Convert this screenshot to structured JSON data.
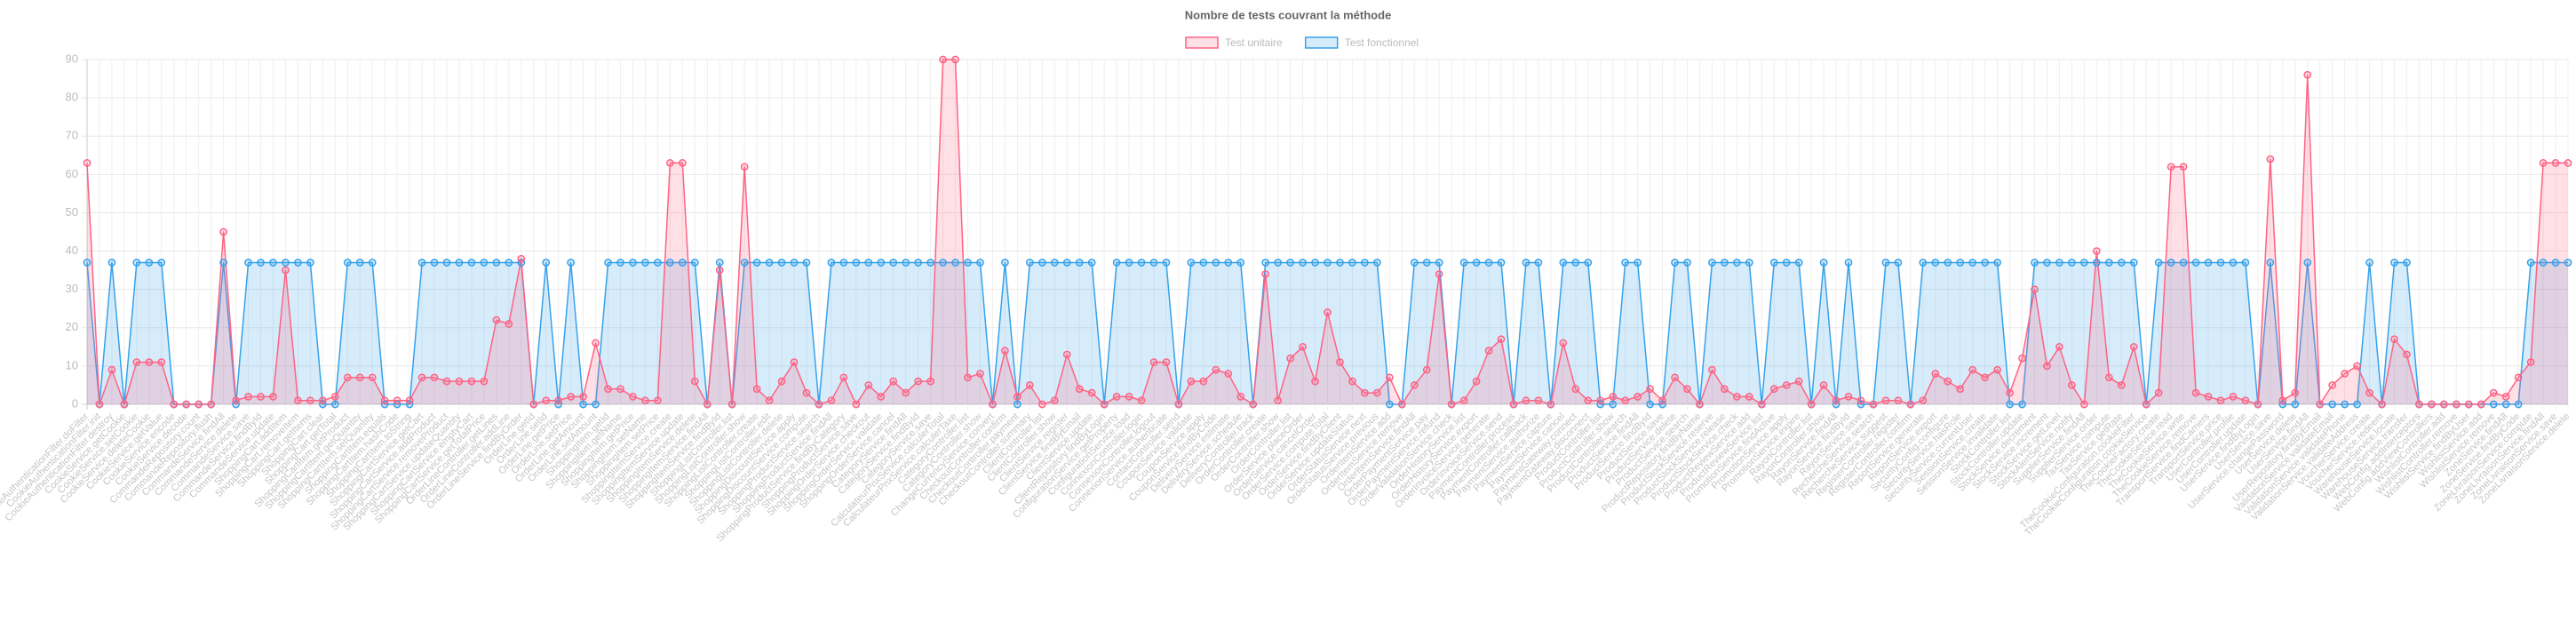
{
  "chart_data": {
    "type": "line",
    "title": "Nombre de tests couvrant la méthode",
    "legend": "top",
    "grid": true,
    "ylim": [
      0,
      90
    ],
    "yticks": [
      0,
      10,
      20,
      30,
      40,
      50,
      60,
      70,
      80,
      90
    ],
    "categories": [
      "CookieAuthenticationFilter.doFilter",
      "CookieAuthenticationFilter.init",
      "CookieAuthenticationFilter.destroy",
      "CookieService.getCookie",
      "CookieService.setCookie",
      "CookieService.deleteCookie",
      "CookieService.getValue",
      "CookieService.encode",
      "CookieService.decode",
      "CommandeRepository.count",
      "CommandeRepository.flush",
      "CommandeService.findAll",
      "CommandeService.delete",
      "CommandeService.save",
      "CommandeService.findById",
      "CommandeService.update",
      "ShoppingCart.addItem",
      "ShoppingCart.removeItem",
      "ShoppingCart.getItems",
      "ShoppingCart.clear",
      "ShoppingCart.getTotal",
      "ShoppingCartItem.getProduct",
      "ShoppingCartItem.getQuantity",
      "ShoppingCartItem.setQuantity",
      "ShoppingCartItem.equals",
      "ShoppingCartItem.hashCode",
      "ShoppingCartItem.toString",
      "ShoppingCartService.getCart",
      "ShoppingCartService.addProduct",
      "ShoppingCartService.removeProduct",
      "ShoppingCartService.updateQuantity",
      "ShoppingCartService.emptyCart",
      "ShoppingCartService.getTotalPrice",
      "OrderLineController.getLines",
      "OrderLineController.addLine",
      "OrderLineService.findByOrder",
      "OrderLine.getId",
      "OrderLine.setId",
      "OrderLine.getPrice",
      "OrderLine.setPrice",
      "OrderLine.getAmount",
      "OrderLine.setAmount",
      "ShoppingItem.getId",
      "ShoppingItem.getName",
      "ShoppingItem.getPrice",
      "ShoppingItem.setName",
      "ShoppingItem.setPrice",
      "ShoppingItemService.create",
      "ShoppingItemService.update",
      "ShoppingItemService.delete",
      "ShoppingItemService.findAll",
      "ShoppingItemService.findById",
      "ShoppingListController.list",
      "ShoppingListController.show",
      "ShoppingListController.create",
      "ShoppingListController.edit",
      "ShoppingListController.delete",
      "ShoppingDiscountService.apply",
      "ShoppingDiscountService.compute",
      "ShoppingProductService.search",
      "ShoppingProductService.findAll",
      "ShoppingProductService.findByCategory",
      "ShoppingProductService.save",
      "ShoppingOrderService.checkout",
      "ShoppingOrderService.validate",
      "ShoppingOrderService.cancel",
      "CategoryService.findAll",
      "CategoryService.findById",
      "CategoryService.save",
      "CalculateurPrixService.calculerTotal",
      "CalculateurPrixService.calculerTaxe",
      "CategoryController.list",
      "CategoryController.show",
      "ChangeCurrencyService.convert",
      "CheckoutController.confirm",
      "CheckoutController.payment",
      "CheckoutController.summary",
      "ClientController.list",
      "ClientController.show",
      "ClientService.register",
      "ClientService.findByEmail",
      "ClientService.update",
      "ClientRepository.findByLogin",
      "ConfigurationService.getProperty",
      "ConfigurationService.load",
      "ConnexionController.login",
      "ConnexionController.logout",
      "ConnexionService.authenticate",
      "ContactController.send",
      "CouponService.validate",
      "CouponService.apply",
      "CouponService.findByCode",
      "DeliveryService.estimate",
      "DeliveryService.schedule",
      "DeliveryController.track",
      "OrderController.create",
      "OrderController.show",
      "OrderController.list",
      "OrderService.placeOrder",
      "OrderService.cancelOrder",
      "OrderService.computeTotal",
      "OrderService.findByClient",
      "OrderService.updateStatus",
      "OrderStatusService.next",
      "OrderStatusService.previous",
      "OrderItemService.add",
      "OrderItemService.remove",
      "OrderItemService.findAll",
      "OrderPaymentService.pay",
      "OrderPaymentService.refund",
      "OrderValidationService.check",
      "OrderHistoryService.list",
      "OrderHistoryService.export",
      "OrderInvoiceService.generate",
      "OrderInvoiceService.send",
      "PaymentController.process",
      "PaymentController.callback",
      "PaymentService.authorize",
      "PaymentService.capture",
      "PaymentService.cancel",
      "PaymentGateway.connect",
      "PaymentGateway.disconnect",
      "ProductController.list",
      "ProductController.show",
      "ProductController.search",
      "ProductService.findAll",
      "ProductService.findById",
      "ProductService.save",
      "ProductService.delete",
      "ProductService.search",
      "ProductRepository.findByName",
      "ProductStockService.reserve",
      "ProductStockService.release",
      "ProductStockService.check",
      "ProductReviewService.add",
      "ProductReviewService.list",
      "PromotionService.findActive",
      "PromotionService.apply",
      "PromotionService.expire",
      "RayonController.list",
      "RayonController.show",
      "RayonService.findAll",
      "RayonService.findById",
      "RayonService.save",
      "RechercheService.search",
      "RechercheService.suggest",
      "RegisterController.register",
      "RegisterController.confirm",
      "ReportService.generate",
      "ReportService.export",
      "SecurityConfig.configure",
      "SecurityService.hasRole",
      "SecurityService.currentUser",
      "SessionService.create",
      "SessionService.invalidate",
      "StockController.list",
      "StockController.update",
      "StockService.decrement",
      "StockService.increment",
      "StockService.getLevel",
      "StockAlertService.notify",
      "SupplierService.findAll",
      "SupplierService.order",
      "TaxService.compute",
      "TaxService.getRate",
      "TheCookieConfiguration.cookieFilter",
      "TheCookieConfiguration.cookieService",
      "TheCookieFactory.create",
      "TheCookieService.read",
      "TheCookieService.write",
      "TheCookieService.remove",
      "TransportService.findCarriers",
      "TransportService.price",
      "UserController.profile",
      "UserController.update",
      "UserService.findByLogin",
      "UserService.save",
      "UserService.changePassword",
      "UserService.delete",
      "UserService.findAll",
      "UserRepository.findByEmail",
      "ValidationService.validateEmail",
      "ValidationService.validatePhone",
      "ValidationService.validateAddress",
      "VoucherService.create",
      "VoucherService.redeem",
      "WarehouseService.locate",
      "WarehouseService.transfer",
      "WebConfig.addInterceptors",
      "WebConfig.addViewControllers",
      "WishlistController.add",
      "WishlistController.remove",
      "WishlistService.findByUser",
      "WishlistService.add",
      "WishlistService.remove",
      "ZoneService.findAll",
      "ZoneService.findByCode",
      "ZoneLivraisonService.compute",
      "ZoneLivraisonService.findAll",
      "ZoneLivraisonService.save",
      "ZoneLivraisonService.delete"
    ],
    "series": [
      {
        "name": "Test unitaire",
        "color": "#ff6384",
        "fill": "rgba(255,99,132,0.2)",
        "values": [
          63,
          0,
          9,
          0,
          11,
          11,
          11,
          0,
          0,
          0,
          0,
          45,
          1,
          2,
          2,
          2,
          35,
          1,
          1,
          1,
          2,
          7,
          7,
          7,
          1,
          1,
          1,
          7,
          7,
          6,
          6,
          6,
          6,
          22,
          21,
          38,
          0,
          1,
          1,
          2,
          2,
          16,
          4,
          4,
          2,
          1,
          1,
          63,
          63,
          6,
          0,
          35,
          0,
          62,
          4,
          1,
          6,
          11,
          3,
          0,
          1,
          7,
          0,
          5,
          2,
          6,
          3,
          6,
          6,
          90,
          90,
          7,
          8,
          0,
          14,
          2,
          5,
          0,
          1,
          13,
          4,
          3,
          0,
          2,
          2,
          1,
          11,
          11,
          0,
          6,
          6,
          9,
          8,
          2,
          0,
          34,
          1,
          12,
          15,
          6,
          24,
          11,
          6,
          3,
          3,
          7,
          0,
          5,
          9,
          34,
          0,
          1,
          6,
          14,
          17,
          0,
          1,
          1,
          0,
          16,
          4,
          1,
          1,
          2,
          1,
          2,
          4,
          1,
          7,
          4,
          0,
          9,
          4,
          2,
          2,
          0,
          4,
          5,
          6,
          0,
          5,
          1,
          2,
          1,
          0,
          1,
          1,
          0,
          1,
          8,
          6,
          4,
          9,
          7,
          9,
          3,
          12,
          30,
          10,
          15,
          5,
          0,
          40,
          7,
          5,
          15,
          0,
          3,
          62,
          62,
          3,
          2,
          1,
          2,
          1,
          0,
          64,
          1,
          3,
          86,
          0,
          5,
          8,
          10,
          3,
          0,
          17,
          13,
          0,
          0,
          0,
          0,
          0,
          0,
          3,
          2,
          7,
          11,
          63,
          63,
          63
        ]
      },
      {
        "name": "Test fonctionnel",
        "color": "#36a2eb",
        "fill": "rgba(54,162,235,0.2)",
        "values": [
          37,
          0,
          37,
          0,
          37,
          37,
          37,
          0,
          0,
          0,
          0,
          37,
          0,
          37,
          37,
          37,
          37,
          37,
          37,
          0,
          0,
          37,
          37,
          37,
          0,
          0,
          0,
          37,
          37,
          37,
          37,
          37,
          37,
          37,
          37,
          37,
          0,
          37,
          0,
          37,
          0,
          0,
          37,
          37,
          37,
          37,
          37,
          37,
          37,
          37,
          0,
          37,
          0,
          37,
          37,
          37,
          37,
          37,
          37,
          0,
          37,
          37,
          37,
          37,
          37,
          37,
          37,
          37,
          37,
          37,
          37,
          37,
          37,
          0,
          37,
          0,
          37,
          37,
          37,
          37,
          37,
          37,
          0,
          37,
          37,
          37,
          37,
          37,
          0,
          37,
          37,
          37,
          37,
          37,
          0,
          37,
          37,
          37,
          37,
          37,
          37,
          37,
          37,
          37,
          37,
          0,
          0,
          37,
          37,
          37,
          0,
          37,
          37,
          37,
          37,
          0,
          37,
          37,
          0,
          37,
          37,
          37,
          0,
          0,
          37,
          37,
          0,
          0,
          37,
          37,
          0,
          37,
          37,
          37,
          37,
          0,
          37,
          37,
          37,
          0,
          37,
          0,
          37,
          0,
          0,
          37,
          37,
          0,
          37,
          37,
          37,
          37,
          37,
          37,
          37,
          0,
          0,
          37,
          37,
          37,
          37,
          37,
          37,
          37,
          37,
          37,
          0,
          37,
          37,
          37,
          37,
          37,
          37,
          37,
          37,
          0,
          37,
          0,
          0,
          37,
          0,
          0,
          0,
          0,
          37,
          0,
          37,
          37,
          0,
          0,
          0,
          0,
          0,
          0,
          0,
          0,
          0,
          37,
          37,
          37,
          37
        ]
      }
    ]
  }
}
